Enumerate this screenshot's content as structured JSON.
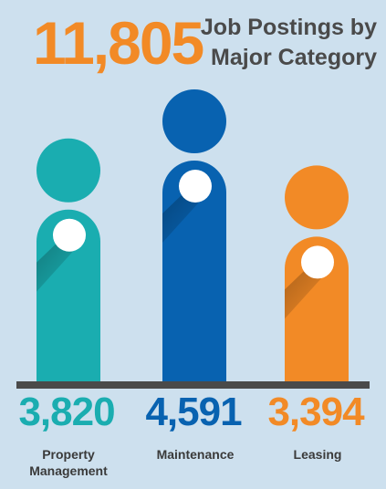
{
  "total": "11,805",
  "chart_data": {
    "type": "bar",
    "title": "Job Postings by Major Category",
    "categories": [
      "Property Management",
      "Maintenance",
      "Leasing"
    ],
    "category_lines": [
      [
        "Property",
        "Management"
      ],
      [
        "Maintenance"
      ],
      [
        "Leasing"
      ]
    ],
    "values": [
      3820,
      4591,
      3394
    ],
    "value_labels": [
      "3,820",
      "4,591",
      "3,394"
    ],
    "colors": [
      "#1aadb0",
      "#0862b0",
      "#f28a26"
    ],
    "baseline_color": "#4a4a4a",
    "grid": false,
    "legend": "none"
  }
}
